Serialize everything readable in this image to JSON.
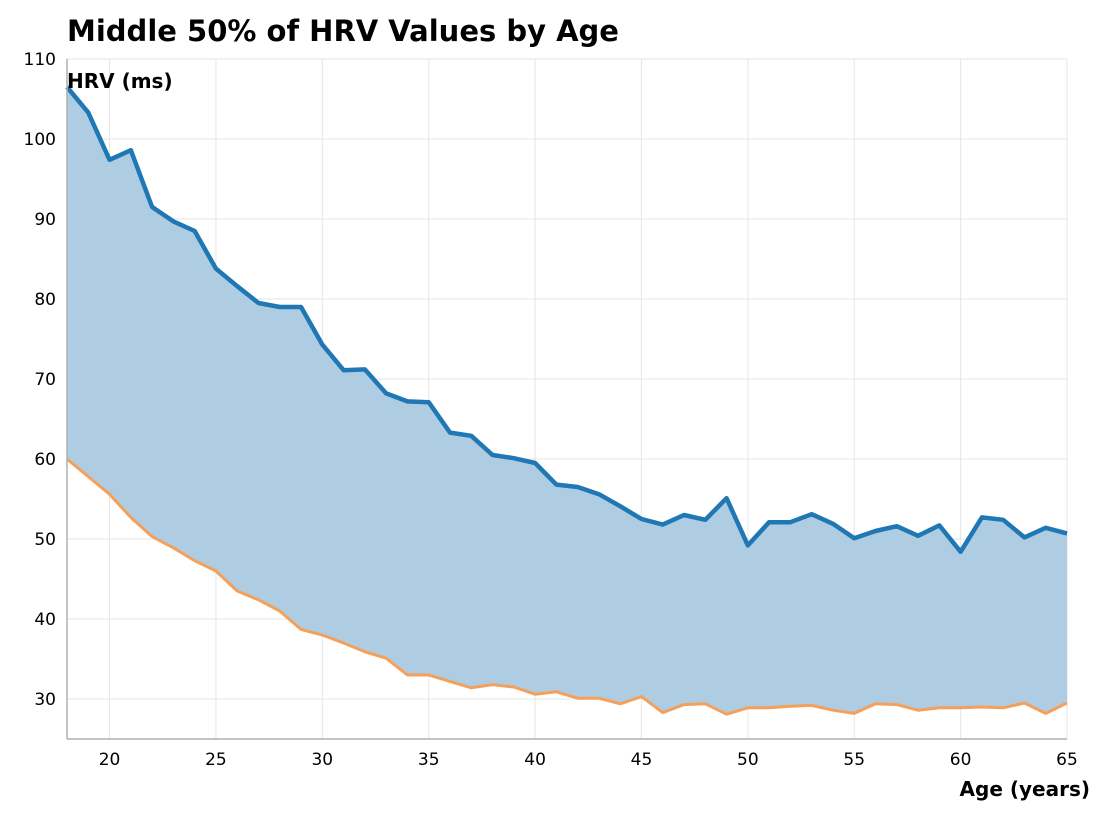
{
  "chart_data": {
    "type": "area",
    "title": "Middle 50% of HRV Values by Age",
    "xlabel": "Age (years)",
    "ylabel": "HRV (ms)",
    "xlim": [
      18,
      65
    ],
    "ylim": [
      25,
      110
    ],
    "xticks": [
      20,
      25,
      30,
      35,
      40,
      45,
      50,
      55,
      60,
      65
    ],
    "yticks": [
      30,
      40,
      50,
      60,
      70,
      80,
      90,
      100,
      110
    ],
    "grid": true,
    "x": [
      18,
      19,
      20,
      21,
      22,
      23,
      24,
      25,
      26,
      27,
      28,
      29,
      30,
      31,
      32,
      33,
      34,
      35,
      36,
      37,
      38,
      39,
      40,
      41,
      42,
      43,
      44,
      45,
      46,
      47,
      48,
      49,
      50,
      51,
      52,
      53,
      54,
      55,
      56,
      57,
      58,
      59,
      60,
      61,
      62,
      63,
      64,
      65
    ],
    "series": [
      {
        "role": "upper",
        "color": "#1f77b4",
        "values": [
          106.5,
          103.3,
          97.4,
          98.6,
          91.5,
          89.7,
          88.5,
          83.8,
          81.6,
          79.5,
          79.0,
          79.0,
          74.3,
          71.1,
          71.2,
          68.2,
          67.2,
          67.1,
          63.3,
          62.9,
          60.5,
          60.1,
          59.5,
          56.8,
          56.5,
          55.6,
          54.1,
          52.5,
          51.8,
          53.0,
          52.4,
          55.1,
          49.2,
          52.1,
          52.1,
          53.1,
          51.9,
          50.1,
          51.0,
          51.6,
          50.4,
          51.7,
          48.4,
          52.7,
          52.4,
          50.2,
          51.4,
          50.7
        ]
      },
      {
        "role": "lower",
        "color": "#f5a05a",
        "values": [
          60.0,
          57.8,
          55.6,
          52.7,
          50.3,
          48.9,
          47.3,
          46.0,
          43.5,
          42.4,
          41.0,
          38.7,
          38.0,
          37.0,
          35.9,
          35.1,
          33.0,
          33.0,
          32.2,
          31.4,
          31.8,
          31.5,
          30.6,
          30.9,
          30.1,
          30.1,
          29.4,
          30.3,
          28.3,
          29.3,
          29.4,
          28.1,
          28.9,
          28.9,
          29.1,
          29.2,
          28.6,
          28.2,
          29.4,
          29.3,
          28.6,
          28.9,
          28.9,
          29.0,
          28.9,
          29.5,
          28.2,
          29.5
        ]
      }
    ],
    "fill_color": "#aecde3"
  }
}
